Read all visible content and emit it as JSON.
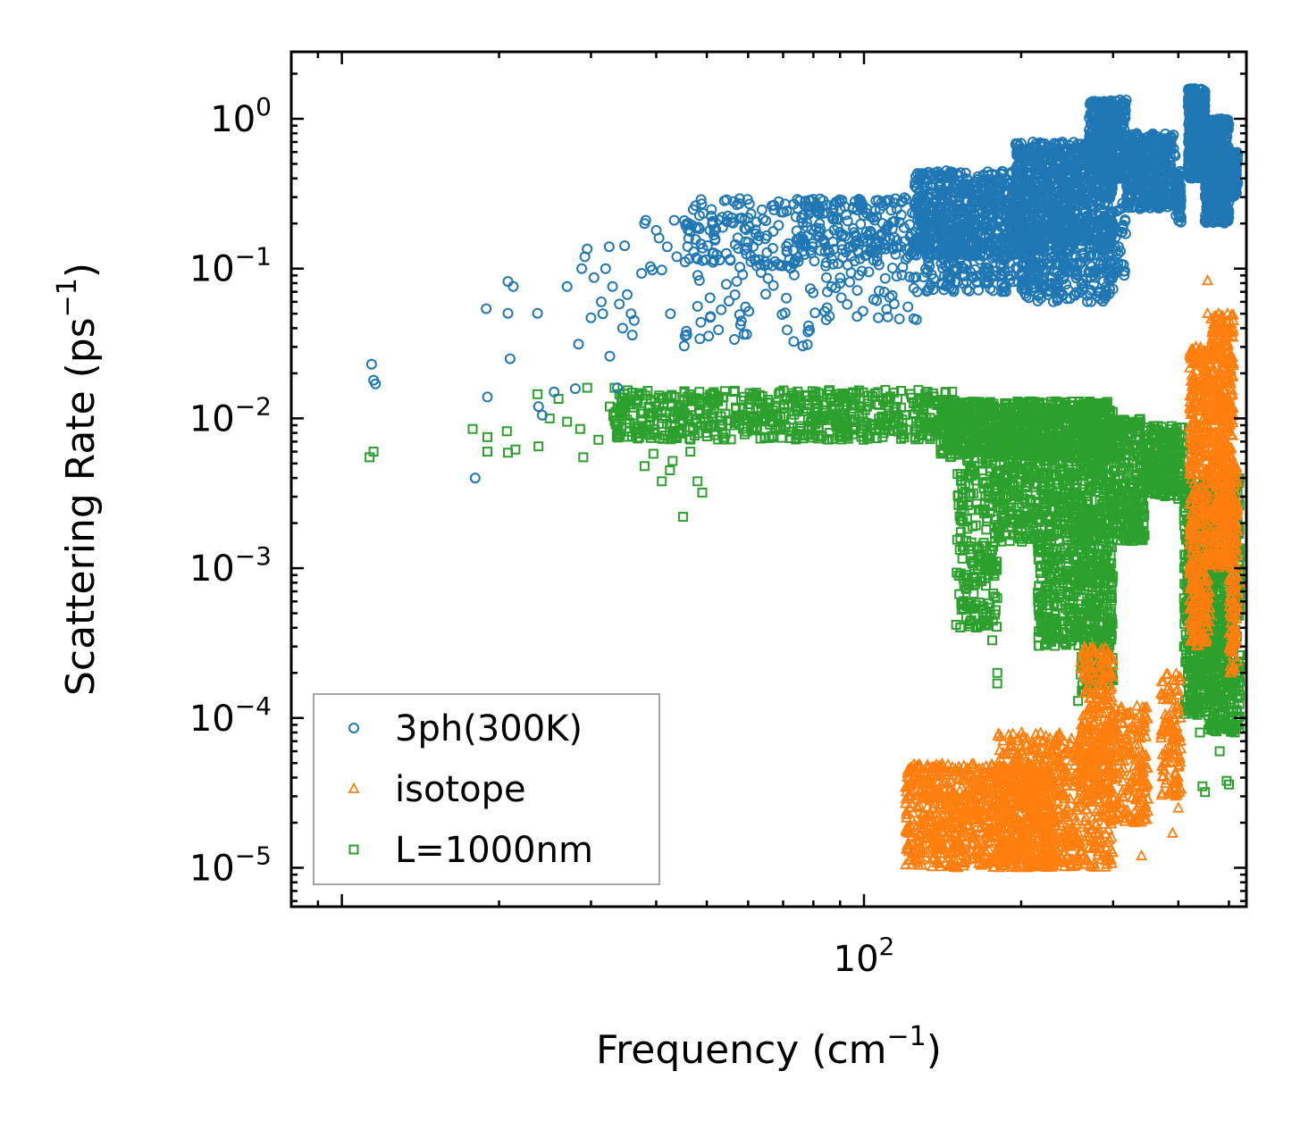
{
  "chart_data": {
    "type": "scatter",
    "title": "",
    "xlabel": "Frequency (cm",
    "xlabel_sup": "−1",
    "xlabel_tail": ")",
    "ylabel": "Scattering Rate (ps",
    "ylabel_sup": "−1",
    "ylabel_tail": ")",
    "xscale": "log",
    "yscale": "log",
    "xlim": [
      8,
      540
    ],
    "ylim": [
      5.5e-06,
      2.8
    ],
    "x_ticks": [
      {
        "value": 100,
        "base": "10",
        "exp": "2"
      }
    ],
    "y_ticks": [
      {
        "value": 1,
        "base": "10",
        "exp": "0"
      },
      {
        "value": 0.1,
        "base": "10",
        "exp": "−1"
      },
      {
        "value": 0.01,
        "base": "10",
        "exp": "−2"
      },
      {
        "value": 0.001,
        "base": "10",
        "exp": "−3"
      },
      {
        "value": 0.0001,
        "base": "10",
        "exp": "−4"
      },
      {
        "value": 1e-05,
        "base": "10",
        "exp": "−5"
      }
    ],
    "grid": false,
    "legend_position": "lower-left",
    "series": [
      {
        "name": "3ph(300K)",
        "color": "#1f77b4",
        "marker": "circle",
        "points": [
          [
            11.4,
            0.023
          ],
          [
            11.5,
            0.018
          ],
          [
            11.6,
            0.017
          ],
          [
            18.0,
            0.004
          ],
          [
            18.9,
            0.054
          ],
          [
            19.0,
            0.0139
          ],
          [
            20.8,
            0.082
          ],
          [
            20.8,
            0.0503
          ],
          [
            21.0,
            0.025
          ],
          [
            21.3,
            0.076
          ],
          [
            23.7,
            0.0503
          ],
          [
            23.8,
            0.012
          ],
          [
            24.2,
            0.0105
          ],
          [
            25.5,
            0.015
          ],
          [
            27.0,
            0.076
          ],
          [
            28.0,
            0.0158
          ],
          [
            28.4,
            0.0313
          ],
          [
            28.8,
            0.1
          ],
          [
            29.2,
            0.12
          ],
          [
            29.5,
            0.135
          ],
          [
            30.0,
            0.047
          ],
          [
            30.4,
            0.087
          ],
          [
            31.4,
            0.06
          ],
          [
            31.6,
            0.05
          ],
          [
            32.0,
            0.1
          ],
          [
            32.5,
            0.14
          ],
          [
            32.6,
            0.026
          ],
          [
            33.0,
            0.076
          ],
          [
            33.7,
            0.016
          ],
          [
            34.0,
            0.058
          ],
          [
            34.5,
            0.04
          ],
          [
            34.8,
            0.142
          ],
          [
            35.2,
            0.067
          ],
          [
            35.8,
            0.05
          ],
          [
            36.0,
            0.036
          ],
          [
            36.3,
            0.045
          ],
          [
            37.5,
            0.093
          ],
          [
            38.0,
            0.2
          ],
          [
            38.2,
            0.21
          ],
          [
            39.0,
            0.103
          ],
          [
            39.3,
            0.098
          ],
          [
            40.0,
            0.18
          ],
          [
            40.5,
            0.16
          ],
          [
            41.0,
            0.098
          ],
          [
            42.0,
            0.14
          ],
          [
            42.6,
            0.05
          ],
          [
            43.3,
            0.21
          ],
          [
            43.8,
            0.12
          ]
        ],
        "bands": [
          {
            "x": [
              45,
              75
            ],
            "y": [
              0.1,
              0.3
            ],
            "n": 140
          },
          {
            "x": [
              45,
              80
            ],
            "y": [
              0.03,
              0.1
            ],
            "n": 45
          },
          {
            "x": [
              75,
              130
            ],
            "y": [
              0.12,
              0.3
            ],
            "n": 220
          },
          {
            "x": [
              80,
              130
            ],
            "y": [
              0.045,
              0.12
            ],
            "n": 60
          },
          {
            "x": [
              125,
              200
            ],
            "y": [
              0.12,
              0.45
            ],
            "n": 650
          },
          {
            "x": [
              130,
              210
            ],
            "y": [
              0.07,
              0.15
            ],
            "n": 200
          },
          {
            "x": [
              195,
              300
            ],
            "y": [
              0.15,
              0.7
            ],
            "n": 850
          },
          {
            "x": [
              200,
              300
            ],
            "y": [
              0.06,
              0.2
            ],
            "n": 300
          },
          {
            "x": [
              270,
              318
            ],
            "y": [
              0.4,
              1.35
            ],
            "n": 420
          },
          {
            "x": [
              285,
              318
            ],
            "y": [
              0.08,
              0.3
            ],
            "n": 60
          },
          {
            "x": [
              318,
              395
            ],
            "y": [
              0.25,
              0.8
            ],
            "n": 400
          },
          {
            "x": [
              395,
              405
            ],
            "y": [
              0.2,
              0.45
            ],
            "n": 60
          },
          {
            "x": [
              418,
              450
            ],
            "y": [
              0.4,
              1.6
            ],
            "n": 450
          },
          {
            "x": [
              450,
              500
            ],
            "y": [
              0.2,
              1.0
            ],
            "n": 420
          },
          {
            "x": [
              500,
              520
            ],
            "y": [
              0.3,
              0.6
            ],
            "n": 120
          }
        ]
      },
      {
        "name": "isotope",
        "color": "#ff7f0e",
        "marker": "triangle",
        "points": [
          [
            455,
            0.083
          ],
          [
            455,
            0.05
          ],
          [
            462,
            0.046
          ],
          [
            390,
            1.7e-05
          ],
          [
            395,
            3e-05
          ],
          [
            400,
            2.5e-05
          ],
          [
            430,
            0.0005
          ],
          [
            520,
            0.001
          ],
          [
            525,
            0.0008
          ],
          [
            330,
            2e-05
          ],
          [
            340,
            1.2e-05
          ],
          [
            195,
            1.8e-05
          ],
          [
            230,
            1.1e-05
          ],
          [
            170,
            1.2e-05
          ]
        ],
        "bands": [
          {
            "x": [
              120,
              230
            ],
            "y": [
              1e-05,
              5e-05
            ],
            "n": 900
          },
          {
            "x": [
              180,
              300
            ],
            "y": [
              1e-05,
              8e-05
            ],
            "n": 700
          },
          {
            "x": [
              260,
              300
            ],
            "y": [
              3e-05,
              0.0003
            ],
            "n": 250
          },
          {
            "x": [
              300,
              350
            ],
            "y": [
              2e-05,
              0.00012
            ],
            "n": 200
          },
          {
            "x": [
              370,
              405
            ],
            "y": [
              3e-05,
              0.0002
            ],
            "n": 120
          },
          {
            "x": [
              420,
              460
            ],
            "y": [
              0.0003,
              0.03
            ],
            "n": 500
          },
          {
            "x": [
              460,
              510
            ],
            "y": [
              0.001,
              0.05
            ],
            "n": 500
          },
          {
            "x": [
              500,
              520
            ],
            "y": [
              0.0002,
              0.005
            ],
            "n": 150
          }
        ]
      },
      {
        "name": "L=1000nm",
        "color": "#2ca02c",
        "marker": "square",
        "points": [
          [
            11.3,
            0.0055
          ],
          [
            11.5,
            0.006
          ],
          [
            17.8,
            0.0085
          ],
          [
            19.0,
            0.0075
          ],
          [
            19.0,
            0.006
          ],
          [
            20.7,
            0.0082
          ],
          [
            20.8,
            0.0059
          ],
          [
            21.5,
            0.0062
          ],
          [
            23.7,
            0.0145
          ],
          [
            23.8,
            0.0065
          ],
          [
            25.0,
            0.01
          ],
          [
            26.0,
            0.0135
          ],
          [
            27.0,
            0.0095
          ],
          [
            28.6,
            0.0085
          ],
          [
            29.0,
            0.0055
          ],
          [
            29.5,
            0.016
          ],
          [
            31.0,
            0.0072
          ],
          [
            32.6,
            0.012
          ],
          [
            33.3,
            0.016
          ],
          [
            34.0,
            0.0145
          ],
          [
            38.0,
            0.0048
          ],
          [
            39.5,
            0.0058
          ],
          [
            41.0,
            0.0038
          ],
          [
            42.5,
            0.0045
          ],
          [
            43.0,
            0.0052
          ],
          [
            45.0,
            0.0022
          ],
          [
            46.5,
            0.006
          ],
          [
            48.0,
            0.0038
          ],
          [
            49.0,
            0.0032
          ],
          [
            157,
            0.0009
          ],
          [
            158,
            0.00086
          ],
          [
            176,
            0.00033
          ],
          [
            180,
            0.0002
          ],
          [
            180,
            0.00017
          ],
          [
            257,
            0.00013
          ],
          [
            260,
            0.0004
          ],
          [
            300,
            9e-05
          ],
          [
            306,
            5.6e-05
          ],
          [
            400,
            0.0029
          ],
          [
            420,
            0.0007
          ],
          [
            430,
            0.0003
          ],
          [
            440,
            8e-05
          ],
          [
            445,
            3.5e-05
          ],
          [
            450,
            3.2e-05
          ],
          [
            470,
            0.00013
          ],
          [
            480,
            6e-05
          ],
          [
            495,
            3.8e-05
          ],
          [
            500,
            3.6e-05
          ],
          [
            525,
            0.00022
          ]
        ],
        "bands": [
          {
            "x": [
              33,
              150
            ],
            "y": [
              0.0072,
              0.0155
            ],
            "n": 650
          },
          {
            "x": [
              150,
              180
            ],
            "y": [
              0.0004,
              0.006
            ],
            "n": 220
          },
          {
            "x": [
              140,
              300
            ],
            "y": [
              0.0055,
              0.013
            ],
            "n": 900
          },
          {
            "x": [
              180,
              215
            ],
            "y": [
              0.0015,
              0.008
            ],
            "n": 200
          },
          {
            "x": [
              215,
              260
            ],
            "y": [
              0.0003,
              0.0075
            ],
            "n": 450
          },
          {
            "x": [
              260,
              300
            ],
            "y": [
              0.00015,
              0.006
            ],
            "n": 500
          },
          {
            "x": [
              300,
              345
            ],
            "y": [
              0.0015,
              0.01
            ],
            "n": 260
          },
          {
            "x": [
              345,
              410
            ],
            "y": [
              0.003,
              0.009
            ],
            "n": 260
          },
          {
            "x": [
              410,
              455
            ],
            "y": [
              0.0001,
              0.004
            ],
            "n": 450
          },
          {
            "x": [
              455,
              525
            ],
            "y": [
              8e-05,
              0.004
            ],
            "n": 650
          }
        ]
      }
    ]
  }
}
